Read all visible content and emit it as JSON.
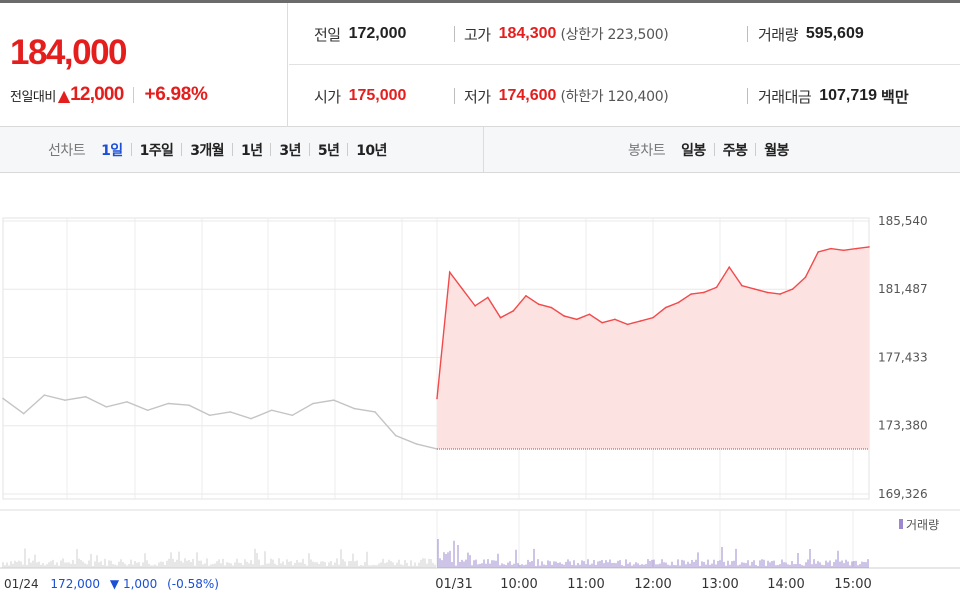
{
  "quote": {
    "price": "184,000",
    "change_label": "전일대비",
    "change_symbol": "▲",
    "change_amount": "12,000",
    "change_pct": "+6.98%",
    "prev_close_label": "전일",
    "prev_close": "172,000",
    "open_label": "시가",
    "open": "175,000",
    "high_label": "고가",
    "high": "184,300",
    "upper_limit": "(상한가 223,500)",
    "low_label": "저가",
    "low": "174,600",
    "lower_limit": "(하한가 120,400)",
    "volume_label": "거래량",
    "volume": "595,609",
    "amount_label": "거래대금",
    "amount": "107,719",
    "amount_unit": "백만"
  },
  "tabs": {
    "line_label": "선차트",
    "line_items": [
      "1일",
      "1주일",
      "3개월",
      "1년",
      "3년",
      "5년",
      "10년"
    ],
    "line_active": "1일",
    "candle_label": "봉차트",
    "candle_items": [
      "일봉",
      "주봉",
      "월봉"
    ]
  },
  "colors": {
    "up": "#e41d1d",
    "down": "#1a4fd6",
    "active_tab": "#1a4fd6",
    "prev_day_line": "#c4c4c4",
    "today_line": "#f24a4a",
    "today_fill": "#fde2e2",
    "volume_today": "#9b88cf",
    "volume_prev": "#cfcfcf"
  },
  "chart_data": {
    "type": "line",
    "title": "",
    "y_ticks": [
      "185,540",
      "181,487",
      "177,433",
      "173,380",
      "169,326"
    ],
    "ylim": [
      169326,
      185540
    ],
    "baseline_prev_close": 172000,
    "x_ticks": [
      "01/24",
      "01/31",
      "10:00",
      "11:00",
      "12:00",
      "13:00",
      "14:00",
      "15:00"
    ],
    "prev_day_summary": {
      "date": "01/24",
      "close": "172,000",
      "symbol": "▼",
      "change": "1,000",
      "pct": "(-0.58%)"
    },
    "volume_legend": "거래량",
    "series": [
      {
        "x": [
          "01/24",
          "01/24",
          "01/24",
          "01/24",
          "01/24",
          "01/24",
          "01/24",
          "01/24",
          "01/24",
          "01/24",
          "01/24",
          "01/24",
          "01/24",
          "01/24",
          "01/24",
          "01/24",
          "01/24",
          "01/24",
          "01/24",
          "01/24",
          "01/24",
          "01/24"
        ],
        "values": [
          175000,
          174100,
          175200,
          174900,
          175100,
          174500,
          174800,
          174300,
          174700,
          174600,
          174000,
          174200,
          173800,
          174300,
          174000,
          174700,
          174900,
          174400,
          174200,
          172800,
          172300,
          172000
        ]
      },
      {
        "x": [
          "09:00",
          "09:05",
          "09:10",
          "09:20",
          "09:30",
          "09:40",
          "09:50",
          "10:00",
          "10:10",
          "10:20",
          "10:30",
          "10:40",
          "10:50",
          "11:00",
          "11:15",
          "11:30",
          "11:45",
          "12:00",
          "12:15",
          "12:30",
          "12:45",
          "13:00",
          "13:10",
          "13:20",
          "13:30",
          "13:45",
          "14:00",
          "14:15",
          "14:30",
          "14:40",
          "14:50",
          "15:00",
          "15:10",
          "15:20",
          "15:30"
        ],
        "values": [
          175000,
          182500,
          181500,
          180500,
          181000,
          179800,
          180200,
          181100,
          180600,
          180400,
          179900,
          179700,
          180000,
          179500,
          179700,
          179400,
          179600,
          179800,
          180400,
          180700,
          181200,
          181300,
          181600,
          182800,
          181700,
          181500,
          181300,
          181200,
          181500,
          182200,
          183700,
          183900,
          183800,
          183900,
          184000
        ]
      }
    ]
  }
}
